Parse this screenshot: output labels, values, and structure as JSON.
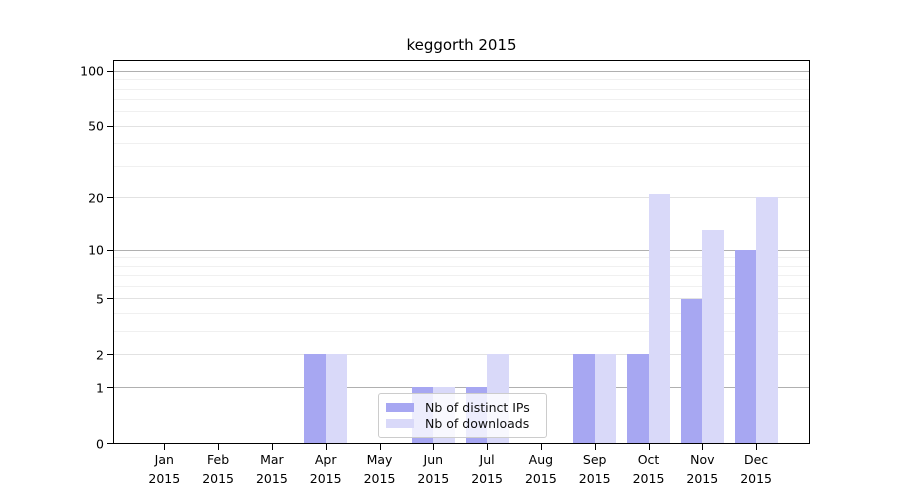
{
  "chart_data": {
    "type": "bar",
    "title": "keggorth 2015",
    "categories": [
      "Jan 2015",
      "Feb 2015",
      "Mar 2015",
      "Apr 2015",
      "May 2015",
      "Jun 2015",
      "Jul 2015",
      "Aug 2015",
      "Sep 2015",
      "Oct 2015",
      "Nov 2015",
      "Dec 2015"
    ],
    "series": [
      {
        "name": "Nb of distinct IPs",
        "color": "#a7a7f2",
        "values": [
          0,
          0,
          0,
          2,
          0,
          1,
          1,
          0,
          2,
          2,
          5,
          10
        ]
      },
      {
        "name": "Nb of downloads",
        "color": "#d9d9f9",
        "values": [
          0,
          0,
          0,
          2,
          0,
          1,
          2,
          0,
          2,
          21,
          13,
          20
        ]
      }
    ],
    "xlabel": "",
    "ylabel": "",
    "yscale": "log1p",
    "ylim": [
      0,
      113
    ],
    "y_ticks": [
      0,
      1,
      2,
      5,
      10,
      20,
      50,
      100
    ],
    "y_major_grid_values": [
      1,
      10,
      100
    ],
    "y_minor_ticks": [
      3,
      4,
      6,
      7,
      8,
      9,
      30,
      40,
      60,
      70,
      80,
      90
    ],
    "grid": true,
    "legend_position": "lower center",
    "colors": {
      "axis": "#000000",
      "grid_major": "#b0b0b0",
      "grid_mid": "#e2e2e2",
      "grid_minor": "#f0f0f0",
      "text": "#000000"
    }
  }
}
